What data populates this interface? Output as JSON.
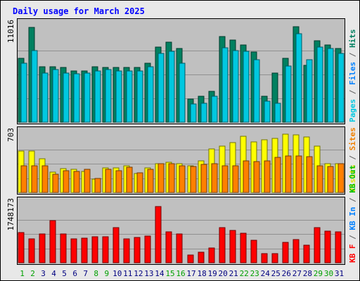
{
  "chart_data": {
    "type": "bar",
    "title": "Daily usage for March 2025",
    "days": [
      "1",
      "2",
      "3",
      "4",
      "5",
      "6",
      "7",
      "8",
      "9",
      "10",
      "11",
      "12",
      "13",
      "14",
      "15",
      "16",
      "17",
      "18",
      "19",
      "20",
      "21",
      "22",
      "23",
      "24",
      "25",
      "26",
      "27",
      "28",
      "29",
      "30",
      "31"
    ],
    "weekend_days": [
      "1",
      "2",
      "8",
      "9",
      "15",
      "16",
      "22",
      "23",
      "29",
      "30"
    ],
    "panels": [
      {
        "id": "hits",
        "max_label": "11016",
        "ymax": 11016,
        "right_label_parts": [
          {
            "text": "Pages",
            "color": "#00c8e0"
          },
          {
            "text": " / ",
            "color": "#606060"
          },
          {
            "text": "Files",
            "color": "#0080ff"
          },
          {
            "text": " / ",
            "color": "#606060"
          },
          {
            "text": "Hits",
            "color": "#008060"
          }
        ],
        "series": [
          {
            "name": "Hits",
            "color": "#008060",
            "values": [
              7400,
              10900,
              6400,
              6400,
              6300,
              5900,
              5900,
              6400,
              6300,
              6300,
              6300,
              6300,
              6800,
              8700,
              9200,
              8500,
              2700,
              3000,
              3600,
              9900,
              9500,
              8900,
              8100,
              3000,
              5700,
              7400,
              11000,
              6600,
              9400,
              8900,
              8500
            ]
          },
          {
            "name": "Files",
            "color": "#0080ff",
            "values": [
              0,
              0,
              0,
              0,
              0,
              0,
              0,
              0,
              0,
              0,
              0,
              0,
              0,
              0,
              0,
              0,
              0,
              0,
              0,
              0,
              0,
              0,
              0,
              0,
              0,
              0,
              0,
              0,
              0,
              0,
              0
            ]
          },
          {
            "name": "Pages",
            "color": "#00c8e0",
            "values": [
              6800,
              8300,
              5700,
              6100,
              5700,
              5600,
              5700,
              5900,
              6100,
              5900,
              5900,
              5900,
              6400,
              7900,
              8200,
              6800,
              2100,
              2200,
              3000,
              8600,
              8300,
              8200,
              7200,
              2400,
              2200,
              6500,
              10200,
              7200,
              8700,
              8500,
              7900
            ]
          }
        ]
      },
      {
        "id": "visits",
        "max_label": "703",
        "ymax": 703,
        "right_label_parts": [
          {
            "text": "Visits",
            "color": "#e0e000"
          },
          {
            "text": " / ",
            "color": "#606060"
          },
          {
            "text": "Sites",
            "color": "#f08000"
          }
        ],
        "series": [
          {
            "name": "Visits",
            "color": "#ffff00",
            "values": [
              510,
              510,
              410,
              250,
              290,
              280,
              260,
              160,
              300,
              300,
              330,
              230,
              300,
              350,
              370,
              350,
              330,
              390,
              530,
              570,
              610,
              690,
              620,
              640,
              660,
              710,
              700,
              680,
              570,
              350,
              350
            ]
          },
          {
            "name": "Sites",
            "color": "#ff8000",
            "values": [
              330,
              330,
              330,
              220,
              270,
              260,
              280,
              170,
              280,
              270,
              310,
              240,
              280,
              350,
              350,
              330,
              320,
              340,
              350,
              330,
              330,
              390,
              380,
              390,
              430,
              450,
              450,
              440,
              330,
              320,
              350
            ]
          }
        ]
      },
      {
        "id": "kbytes",
        "max_label": "1748173",
        "ymax": 1748173,
        "right_label_parts": [
          {
            "text": "KB F",
            "color": "#ff0000"
          },
          {
            "text": " / ",
            "color": "#606060"
          },
          {
            "text": "KB In",
            "color": "#0080ff"
          },
          {
            "text": " / ",
            "color": "#606060"
          },
          {
            "text": "KB Out",
            "color": "#00c000"
          }
        ],
        "series": [
          {
            "name": "KB F",
            "color": "#ff0000",
            "values": [
              910000,
              730000,
              870000,
              1270000,
              880000,
              720000,
              740000,
              790000,
              790000,
              1060000,
              720000,
              770000,
              800000,
              1700000,
              940000,
              870000,
              230000,
              320000,
              440000,
              1070000,
              980000,
              900000,
              680000,
              270000,
              280000,
              620000,
              710000,
              530000,
              1070000,
              960000,
              940000
            ]
          },
          {
            "name": "KB In",
            "color": "#0080ff",
            "values": [
              0,
              0,
              0,
              0,
              0,
              0,
              0,
              0,
              0,
              0,
              0,
              0,
              0,
              0,
              0,
              0,
              0,
              0,
              0,
              0,
              0,
              0,
              0,
              0,
              0,
              0,
              0,
              0,
              0,
              0,
              0
            ]
          },
          {
            "name": "KB Out",
            "color": "#00c000",
            "values": [
              0,
              0,
              0,
              0,
              0,
              0,
              0,
              0,
              0,
              0,
              0,
              0,
              0,
              0,
              0,
              0,
              0,
              0,
              0,
              0,
              0,
              0,
              0,
              0,
              0,
              0,
              0,
              0,
              0,
              0,
              0
            ]
          }
        ]
      }
    ],
    "colors": {
      "background": "#e8e8e8",
      "plot": "#c0c0c0",
      "title": "#0000ff",
      "weekday_label": "#000080",
      "weekend_label": "#00a000"
    }
  }
}
